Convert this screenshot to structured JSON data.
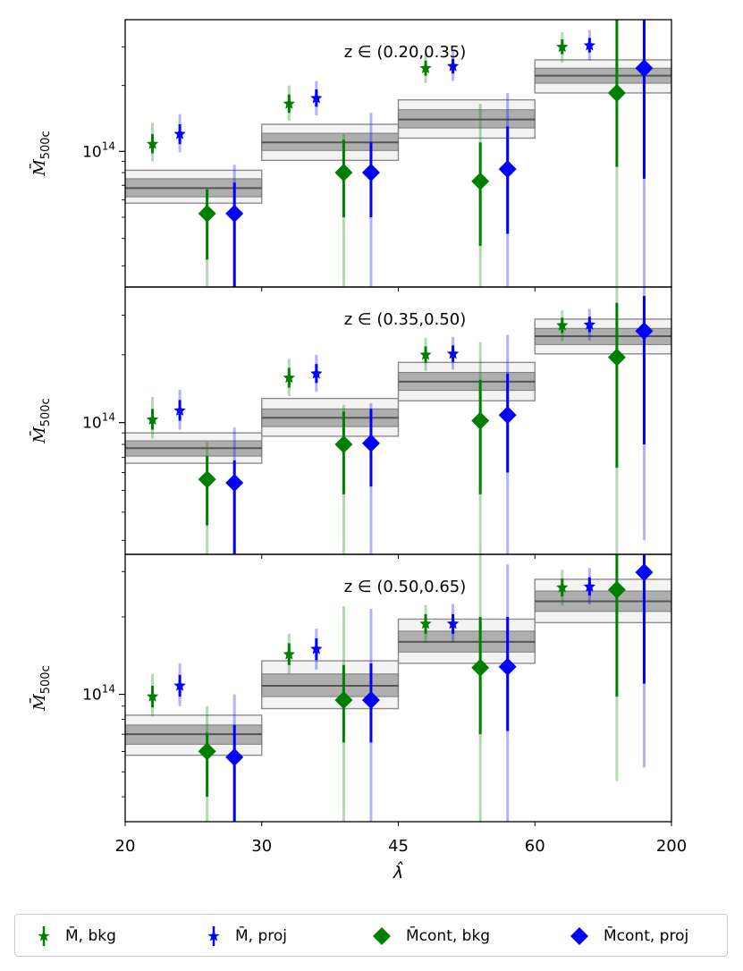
{
  "chart_data": {
    "type": "scatter",
    "xlabel": "λ̂",
    "ylabel_main": "M̄",
    "ylabel_sub": "500c",
    "x_bin_edges": [
      "20",
      "30",
      "45",
      "60",
      "200"
    ],
    "y_scale": "log",
    "y_tick_label": "10",
    "y_tick_exp": "14",
    "legend": [
      {
        "label": "M̄, bkg",
        "marker": "star",
        "color": "#008000"
      },
      {
        "label": "M̄, proj",
        "marker": "star",
        "color": "#0000ff"
      },
      {
        "label": "M̄cont, bkg",
        "marker": "diamond",
        "color": "#008000"
      },
      {
        "label": "M̄cont, proj",
        "marker": "diamond",
        "color": "#0000ff"
      }
    ],
    "colors": {
      "bkg": "#008000",
      "proj": "#0000ff",
      "band": "#808080"
    },
    "panels": [
      {
        "title": "z ∈ (0.20,0.35)",
        "ylim": [
          24000000000000.0,
          400000000000000.0
        ],
        "bands": [
          {
            "center": 68000000000000.0,
            "inner": [
              62000000000000.0,
              75000000000000.0
            ],
            "outer": [
              58000000000000.0,
              82000000000000.0
            ]
          },
          {
            "center": 110000000000000.0,
            "inner": [
              101000000000000.0,
              121000000000000.0
            ],
            "outer": [
              91000000000000.0,
              133000000000000.0
            ]
          },
          {
            "center": 140000000000000.0,
            "inner": [
              128000000000000.0,
              155000000000000.0
            ],
            "outer": [
              115000000000000.0,
              172000000000000.0
            ]
          },
          {
            "center": 222000000000000.0,
            "inner": [
              205000000000000.0,
              240000000000000.0
            ],
            "outer": [
              185000000000000.0,
              262000000000000.0
            ]
          }
        ],
        "stars": [
          {
            "series": "bkg",
            "bin": 0,
            "value": 108000000000000.0,
            "err1": [
              98000000000000.0,
              120000000000000.0
            ],
            "err2": [
              90000000000000.0,
              135000000000000.0
            ]
          },
          {
            "series": "proj",
            "bin": 0,
            "value": 120000000000000.0,
            "err1": [
              108000000000000.0,
              133000000000000.0
            ],
            "err2": [
              99000000000000.0,
              148000000000000.0
            ]
          },
          {
            "series": "bkg",
            "bin": 1,
            "value": 165000000000000.0,
            "err1": [
              150000000000000.0,
              182000000000000.0
            ],
            "err2": [
              138000000000000.0,
              200000000000000.0
            ]
          },
          {
            "series": "proj",
            "bin": 1,
            "value": 175000000000000.0,
            "err1": [
              160000000000000.0,
              192000000000000.0
            ],
            "err2": [
              146000000000000.0,
              210000000000000.0
            ]
          },
          {
            "series": "bkg",
            "bin": 2,
            "value": 240000000000000.0,
            "err1": [
              222000000000000.0,
              260000000000000.0
            ],
            "err2": [
              205000000000000.0,
              282000000000000.0
            ]
          },
          {
            "series": "proj",
            "bin": 2,
            "value": 245000000000000.0,
            "err1": [
              227000000000000.0,
              265000000000000.0
            ],
            "err2": [
              210000000000000.0,
              288000000000000.0
            ]
          },
          {
            "series": "bkg",
            "bin": 3,
            "value": 300000000000000.0,
            "err1": [
              278000000000000.0,
              325000000000000.0
            ],
            "err2": [
              255000000000000.0,
              350000000000000.0
            ]
          },
          {
            "series": "proj",
            "bin": 3,
            "value": 305000000000000.0,
            "err1": [
              283000000000000.0,
              330000000000000.0
            ],
            "err2": [
              260000000000000.0,
              358000000000000.0
            ]
          }
        ],
        "diamonds": [
          {
            "series": "bkg",
            "bin": 0,
            "value": 52000000000000.0,
            "err1": [
              32000000000000.0,
              67000000000000.0
            ],
            "err2": [
              24000000000000.0,
              68000000000000.0
            ]
          },
          {
            "series": "proj",
            "bin": 0,
            "value": 52000000000000.0,
            "err1": [
              24000000000000.0,
              72000000000000.0
            ],
            "err2": [
              24000000000000.0,
              87000000000000.0
            ]
          },
          {
            "series": "bkg",
            "bin": 1,
            "value": 80000000000000.0,
            "err1": [
              50000000000000.0,
              113000000000000.0
            ],
            "err2": [
              24000000000000.0,
              120000000000000.0
            ]
          },
          {
            "series": "proj",
            "bin": 1,
            "value": 80000000000000.0,
            "err1": [
              50000000000000.0,
              110000000000000.0
            ],
            "err2": [
              24000000000000.0,
              150000000000000.0
            ]
          },
          {
            "series": "bkg",
            "bin": 2,
            "value": 73000000000000.0,
            "err1": [
              37000000000000.0,
              110000000000000.0
            ],
            "err2": [
              24000000000000.0,
              165000000000000.0
            ]
          },
          {
            "series": "proj",
            "bin": 2,
            "value": 83000000000000.0,
            "err1": [
              42000000000000.0,
              130000000000000.0
            ],
            "err2": [
              24000000000000.0,
              185000000000000.0
            ]
          },
          {
            "series": "bkg",
            "bin": 3,
            "value": 185000000000000.0,
            "err1": [
              85000000000000.0,
              400000000000000.0
            ],
            "err2": [
              24000000000000.0,
              400000000000000.0
            ]
          },
          {
            "series": "proj",
            "bin": 3,
            "value": 240000000000000.0,
            "err1": [
              75000000000000.0,
              400000000000000.0
            ],
            "err2": [
              24000000000000.0,
              400000000000000.0
            ]
          }
        ]
      },
      {
        "title": "z ∈ (0.35,0.50)",
        "ylim": [
          26000000000000.0,
          400000000000000.0
        ],
        "bands": [
          {
            "center": 77000000000000.0,
            "inner": [
              71000000000000.0,
              83000000000000.0
            ],
            "outer": [
              66000000000000.0,
              90000000000000.0
            ]
          },
          {
            "center": 105000000000000.0,
            "inner": [
              96000000000000.0,
              115000000000000.0
            ],
            "outer": [
              87000000000000.0,
              128000000000000.0
            ]
          },
          {
            "center": 152000000000000.0,
            "inner": [
              139000000000000.0,
              167000000000000.0
            ],
            "outer": [
              125000000000000.0,
              185000000000000.0
            ]
          },
          {
            "center": 242000000000000.0,
            "inner": [
              222000000000000.0,
              262000000000000.0
            ],
            "outer": [
              202000000000000.0,
              288000000000000.0
            ]
          }
        ],
        "stars": [
          {
            "series": "bkg",
            "bin": 0,
            "value": 103000000000000.0,
            "err1": [
              93000000000000.0,
              115000000000000.0
            ],
            "err2": [
              85000000000000.0,
              130000000000000.0
            ]
          },
          {
            "series": "proj",
            "bin": 0,
            "value": 113000000000000.0,
            "err1": [
              102000000000000.0,
              126000000000000.0
            ],
            "err2": [
              93000000000000.0,
              140000000000000.0
            ]
          },
          {
            "series": "bkg",
            "bin": 1,
            "value": 158000000000000.0,
            "err1": [
              143000000000000.0,
              175000000000000.0
            ],
            "err2": [
              131000000000000.0,
              192000000000000.0
            ]
          },
          {
            "series": "proj",
            "bin": 1,
            "value": 165000000000000.0,
            "err1": [
              150000000000000.0,
              182000000000000.0
            ],
            "err2": [
              137000000000000.0,
              200000000000000.0
            ]
          },
          {
            "series": "bkg",
            "bin": 2,
            "value": 200000000000000.0,
            "err1": [
              184000000000000.0,
              218000000000000.0
            ],
            "err2": [
              170000000000000.0,
              238000000000000.0
            ]
          },
          {
            "series": "proj",
            "bin": 2,
            "value": 202000000000000.0,
            "err1": [
              186000000000000.0,
              220000000000000.0
            ],
            "err2": [
              172000000000000.0,
              240000000000000.0
            ]
          },
          {
            "series": "bkg",
            "bin": 3,
            "value": 270000000000000.0,
            "err1": [
              250000000000000.0,
              292000000000000.0
            ],
            "err2": [
              230000000000000.0,
              315000000000000.0
            ]
          },
          {
            "series": "proj",
            "bin": 3,
            "value": 272000000000000.0,
            "err1": [
              252000000000000.0,
              295000000000000.0
            ],
            "err2": [
              232000000000000.0,
              320000000000000.0
            ]
          }
        ],
        "diamonds": [
          {
            "series": "bkg",
            "bin": 0,
            "value": 56000000000000.0,
            "err1": [
              35000000000000.0,
              71000000000000.0
            ],
            "err2": [
              26000000000000.0,
              82000000000000.0
            ]
          },
          {
            "series": "proj",
            "bin": 0,
            "value": 54000000000000.0,
            "err1": [
              26000000000000.0,
              68000000000000.0
            ],
            "err2": [
              26000000000000.0,
              95000000000000.0
            ]
          },
          {
            "series": "bkg",
            "bin": 1,
            "value": 80000000000000.0,
            "err1": [
              48000000000000.0,
              112000000000000.0
            ],
            "err2": [
              26000000000000.0,
              120000000000000.0
            ]
          },
          {
            "series": "proj",
            "bin": 1,
            "value": 81000000000000.0,
            "err1": [
              52000000000000.0,
              115000000000000.0
            ],
            "err2": [
              26000000000000.0,
              122000000000000.0
            ]
          },
          {
            "series": "bkg",
            "bin": 2,
            "value": 102000000000000.0,
            "err1": [
              48000000000000.0,
              155000000000000.0
            ],
            "err2": [
              26000000000000.0,
              228000000000000.0
            ]
          },
          {
            "series": "proj",
            "bin": 2,
            "value": 108000000000000.0,
            "err1": [
              60000000000000.0,
              165000000000000.0
            ],
            "err2": [
              26000000000000.0,
              245000000000000.0
            ]
          },
          {
            "series": "bkg",
            "bin": 3,
            "value": 195000000000000.0,
            "err1": [
              63000000000000.0,
              340000000000000.0
            ],
            "err2": [
              26000000000000.0,
              400000000000000.0
            ]
          },
          {
            "series": "proj",
            "bin": 3,
            "value": 255000000000000.0,
            "err1": [
              80000000000000.0,
              365000000000000.0
            ],
            "err2": [
              30000000000000.0,
              400000000000000.0
            ]
          }
        ]
      },
      {
        "title": "z ∈ (0.50,0.65)",
        "ylim": [
          32000000000000.0,
          350000000000000.0
        ],
        "bands": [
          {
            "center": 70000000000000.0,
            "inner": [
              64000000000000.0,
              76000000000000.0
            ],
            "outer": [
              58000000000000.0,
              83000000000000.0
            ]
          },
          {
            "center": 108000000000000.0,
            "inner": [
              98000000000000.0,
              120000000000000.0
            ],
            "outer": [
              88000000000000.0,
              135000000000000.0
            ]
          },
          {
            "center": 160000000000000.0,
            "inner": [
              146000000000000.0,
              176000000000000.0
            ],
            "outer": [
              132000000000000.0,
              196000000000000.0
            ]
          },
          {
            "center": 230000000000000.0,
            "inner": [
              210000000000000.0,
              252000000000000.0
            ],
            "outer": [
              190000000000000.0,
              280000000000000.0
            ]
          }
        ],
        "stars": [
          {
            "series": "bkg",
            "bin": 0,
            "value": 98000000000000.0,
            "err1": [
              89000000000000.0,
              108000000000000.0
            ],
            "err2": [
              82000000000000.0,
              120000000000000.0
            ]
          },
          {
            "series": "proj",
            "bin": 0,
            "value": 108000000000000.0,
            "err1": [
              98000000000000.0,
              119000000000000.0
            ],
            "err2": [
              90000000000000.0,
              132000000000000.0
            ]
          },
          {
            "series": "bkg",
            "bin": 1,
            "value": 143000000000000.0,
            "err1": [
              130000000000000.0,
              158000000000000.0
            ],
            "err2": [
              120000000000000.0,
              172000000000000.0
            ]
          },
          {
            "series": "proj",
            "bin": 1,
            "value": 150000000000000.0,
            "err1": [
              136000000000000.0,
              165000000000000.0
            ],
            "err2": [
              125000000000000.0,
              180000000000000.0
            ]
          },
          {
            "series": "bkg",
            "bin": 2,
            "value": 188000000000000.0,
            "err1": [
              172000000000000.0,
              205000000000000.0
            ],
            "err2": [
              160000000000000.0,
              222000000000000.0
            ]
          },
          {
            "series": "proj",
            "bin": 2,
            "value": 188000000000000.0,
            "err1": [
              172000000000000.0,
              205000000000000.0
            ],
            "err2": [
              160000000000000.0,
              225000000000000.0
            ]
          },
          {
            "series": "bkg",
            "bin": 3,
            "value": 260000000000000.0,
            "err1": [
              240000000000000.0,
              282000000000000.0
            ],
            "err2": [
              222000000000000.0,
              305000000000000.0
            ]
          },
          {
            "series": "proj",
            "bin": 3,
            "value": 262000000000000.0,
            "err1": [
              242000000000000.0,
              285000000000000.0
            ],
            "err2": [
              224000000000000.0,
              310000000000000.0
            ]
          }
        ],
        "diamonds": [
          {
            "series": "bkg",
            "bin": 0,
            "value": 60000000000000.0,
            "err1": [
              40000000000000.0,
              71000000000000.0
            ],
            "err2": [
              32000000000000.0,
              90000000000000.0
            ]
          },
          {
            "series": "proj",
            "bin": 0,
            "value": 57000000000000.0,
            "err1": [
              32000000000000.0,
              76000000000000.0
            ],
            "err2": [
              32000000000000.0,
              100000000000000.0
            ]
          },
          {
            "series": "bkg",
            "bin": 1,
            "value": 95000000000000.0,
            "err1": [
              65000000000000.0,
              130000000000000.0
            ],
            "err2": [
              32000000000000.0,
              220000000000000.0
            ]
          },
          {
            "series": "proj",
            "bin": 1,
            "value": 95000000000000.0,
            "err1": [
              65000000000000.0,
              132000000000000.0
            ],
            "err2": [
              32000000000000.0,
              215000000000000.0
            ]
          },
          {
            "series": "bkg",
            "bin": 2,
            "value": 127000000000000.0,
            "err1": [
              70000000000000.0,
              200000000000000.0
            ],
            "err2": [
              32000000000000.0,
              350000000000000.0
            ]
          },
          {
            "series": "proj",
            "bin": 2,
            "value": 128000000000000.0,
            "err1": [
              72000000000000.0,
              200000000000000.0
            ],
            "err2": [
              32000000000000.0,
              320000000000000.0
            ]
          },
          {
            "series": "bkg",
            "bin": 3,
            "value": 255000000000000.0,
            "err1": [
              98000000000000.0,
              350000000000000.0
            ],
            "err2": [
              46000000000000.0,
              350000000000000.0
            ]
          },
          {
            "series": "proj",
            "bin": 3,
            "value": 298000000000000.0,
            "err1": [
              110000000000000.0,
              350000000000000.0
            ],
            "err2": [
              52000000000000.0,
              350000000000000.0
            ]
          }
        ]
      }
    ]
  }
}
